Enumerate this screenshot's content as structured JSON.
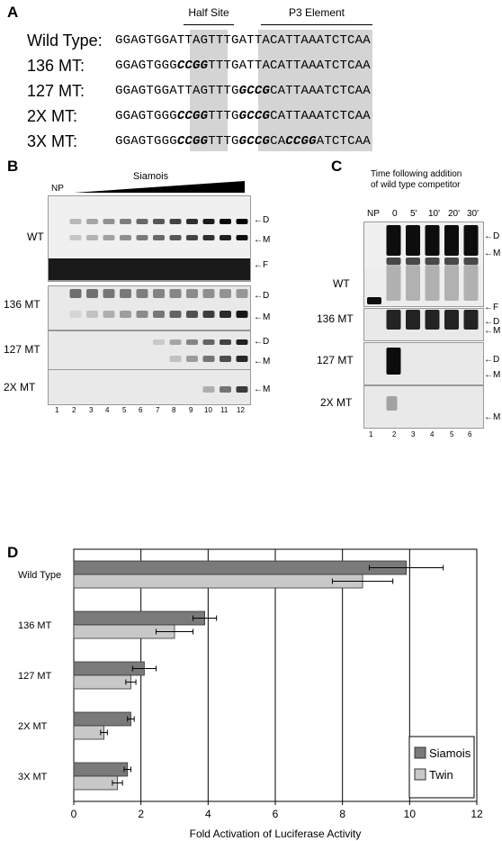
{
  "panels": {
    "a": "A",
    "b": "B",
    "c": "C",
    "d": "D"
  },
  "panel_a": {
    "header_half_site": "Half Site",
    "header_p3": "P3 Element",
    "rows": [
      {
        "label": "Wild Type:",
        "seq": "GGAGTGGATTAGTTTGATTACATTAAATCTCAA"
      },
      {
        "label": "136 MT:",
        "seq": "GGAGTGGGCCGGTTTGATTACATTAAATCTCAA",
        "mutations": "GCCG"
      },
      {
        "label": "127 MT:",
        "seq": "GGAGTGGATTAGTTTGGCCGCATTAAATCTCAA",
        "mutations": "GCCG"
      },
      {
        "label": "2X MT:",
        "seq": "GGAGTGGGCCGGTTTGGCCGCATTAAATCTCAA",
        "mutations": "GCCG GCCG"
      },
      {
        "label": "3X MT:",
        "seq": "GGAGTGGGCCGGTTTGGCCGCACCGGATCTCAA",
        "mutations": "GCCG GCCG CCGG"
      }
    ]
  },
  "panel_b": {
    "np": "NP",
    "siamois": "Siamois",
    "row_labels": [
      "WT",
      "136 MT",
      "127 MT",
      "2X MT"
    ],
    "lanes": [
      "1",
      "2",
      "3",
      "4",
      "5",
      "6",
      "7",
      "8",
      "9",
      "10",
      "11",
      "12"
    ],
    "marks": {
      "d": "←D",
      "m": "←M",
      "f": "←F"
    }
  },
  "panel_c": {
    "title_line1": "Time following addition",
    "title_line2": "of wild type competitor",
    "lane_headers": [
      "NP",
      "0",
      "5'",
      "10'",
      "20'",
      "30'"
    ],
    "row_labels": [
      "WT",
      "136 MT",
      "127 MT",
      "2X MT"
    ],
    "lanes": [
      "1",
      "2",
      "3",
      "4",
      "5",
      "6"
    ],
    "marks": {
      "d": "←D",
      "m": "←M",
      "f": "←F"
    }
  },
  "chart_data": {
    "type": "bar",
    "orientation": "horizontal",
    "categories": [
      "Wild Type",
      "136 MT",
      "127 MT",
      "2X MT",
      "3X MT"
    ],
    "series": [
      {
        "name": "Siamois",
        "values": [
          9.9,
          3.9,
          2.1,
          1.7,
          1.6
        ],
        "errors": [
          1.1,
          0.35,
          0.35,
          0.1,
          0.1
        ],
        "color": "#7a7a7a"
      },
      {
        "name": "Twin",
        "values": [
          8.6,
          3.0,
          1.7,
          0.9,
          1.3
        ],
        "errors": [
          0.9,
          0.55,
          0.15,
          0.1,
          0.15
        ],
        "color": "#c8c8c8"
      }
    ],
    "xlabel": "Fold Activation of Luciferase Activity",
    "xlim": [
      0,
      12
    ],
    "xticks": [
      "0",
      "2",
      "4",
      "6",
      "8",
      "10",
      "12"
    ],
    "grid": true,
    "legend": "bottom-right"
  }
}
